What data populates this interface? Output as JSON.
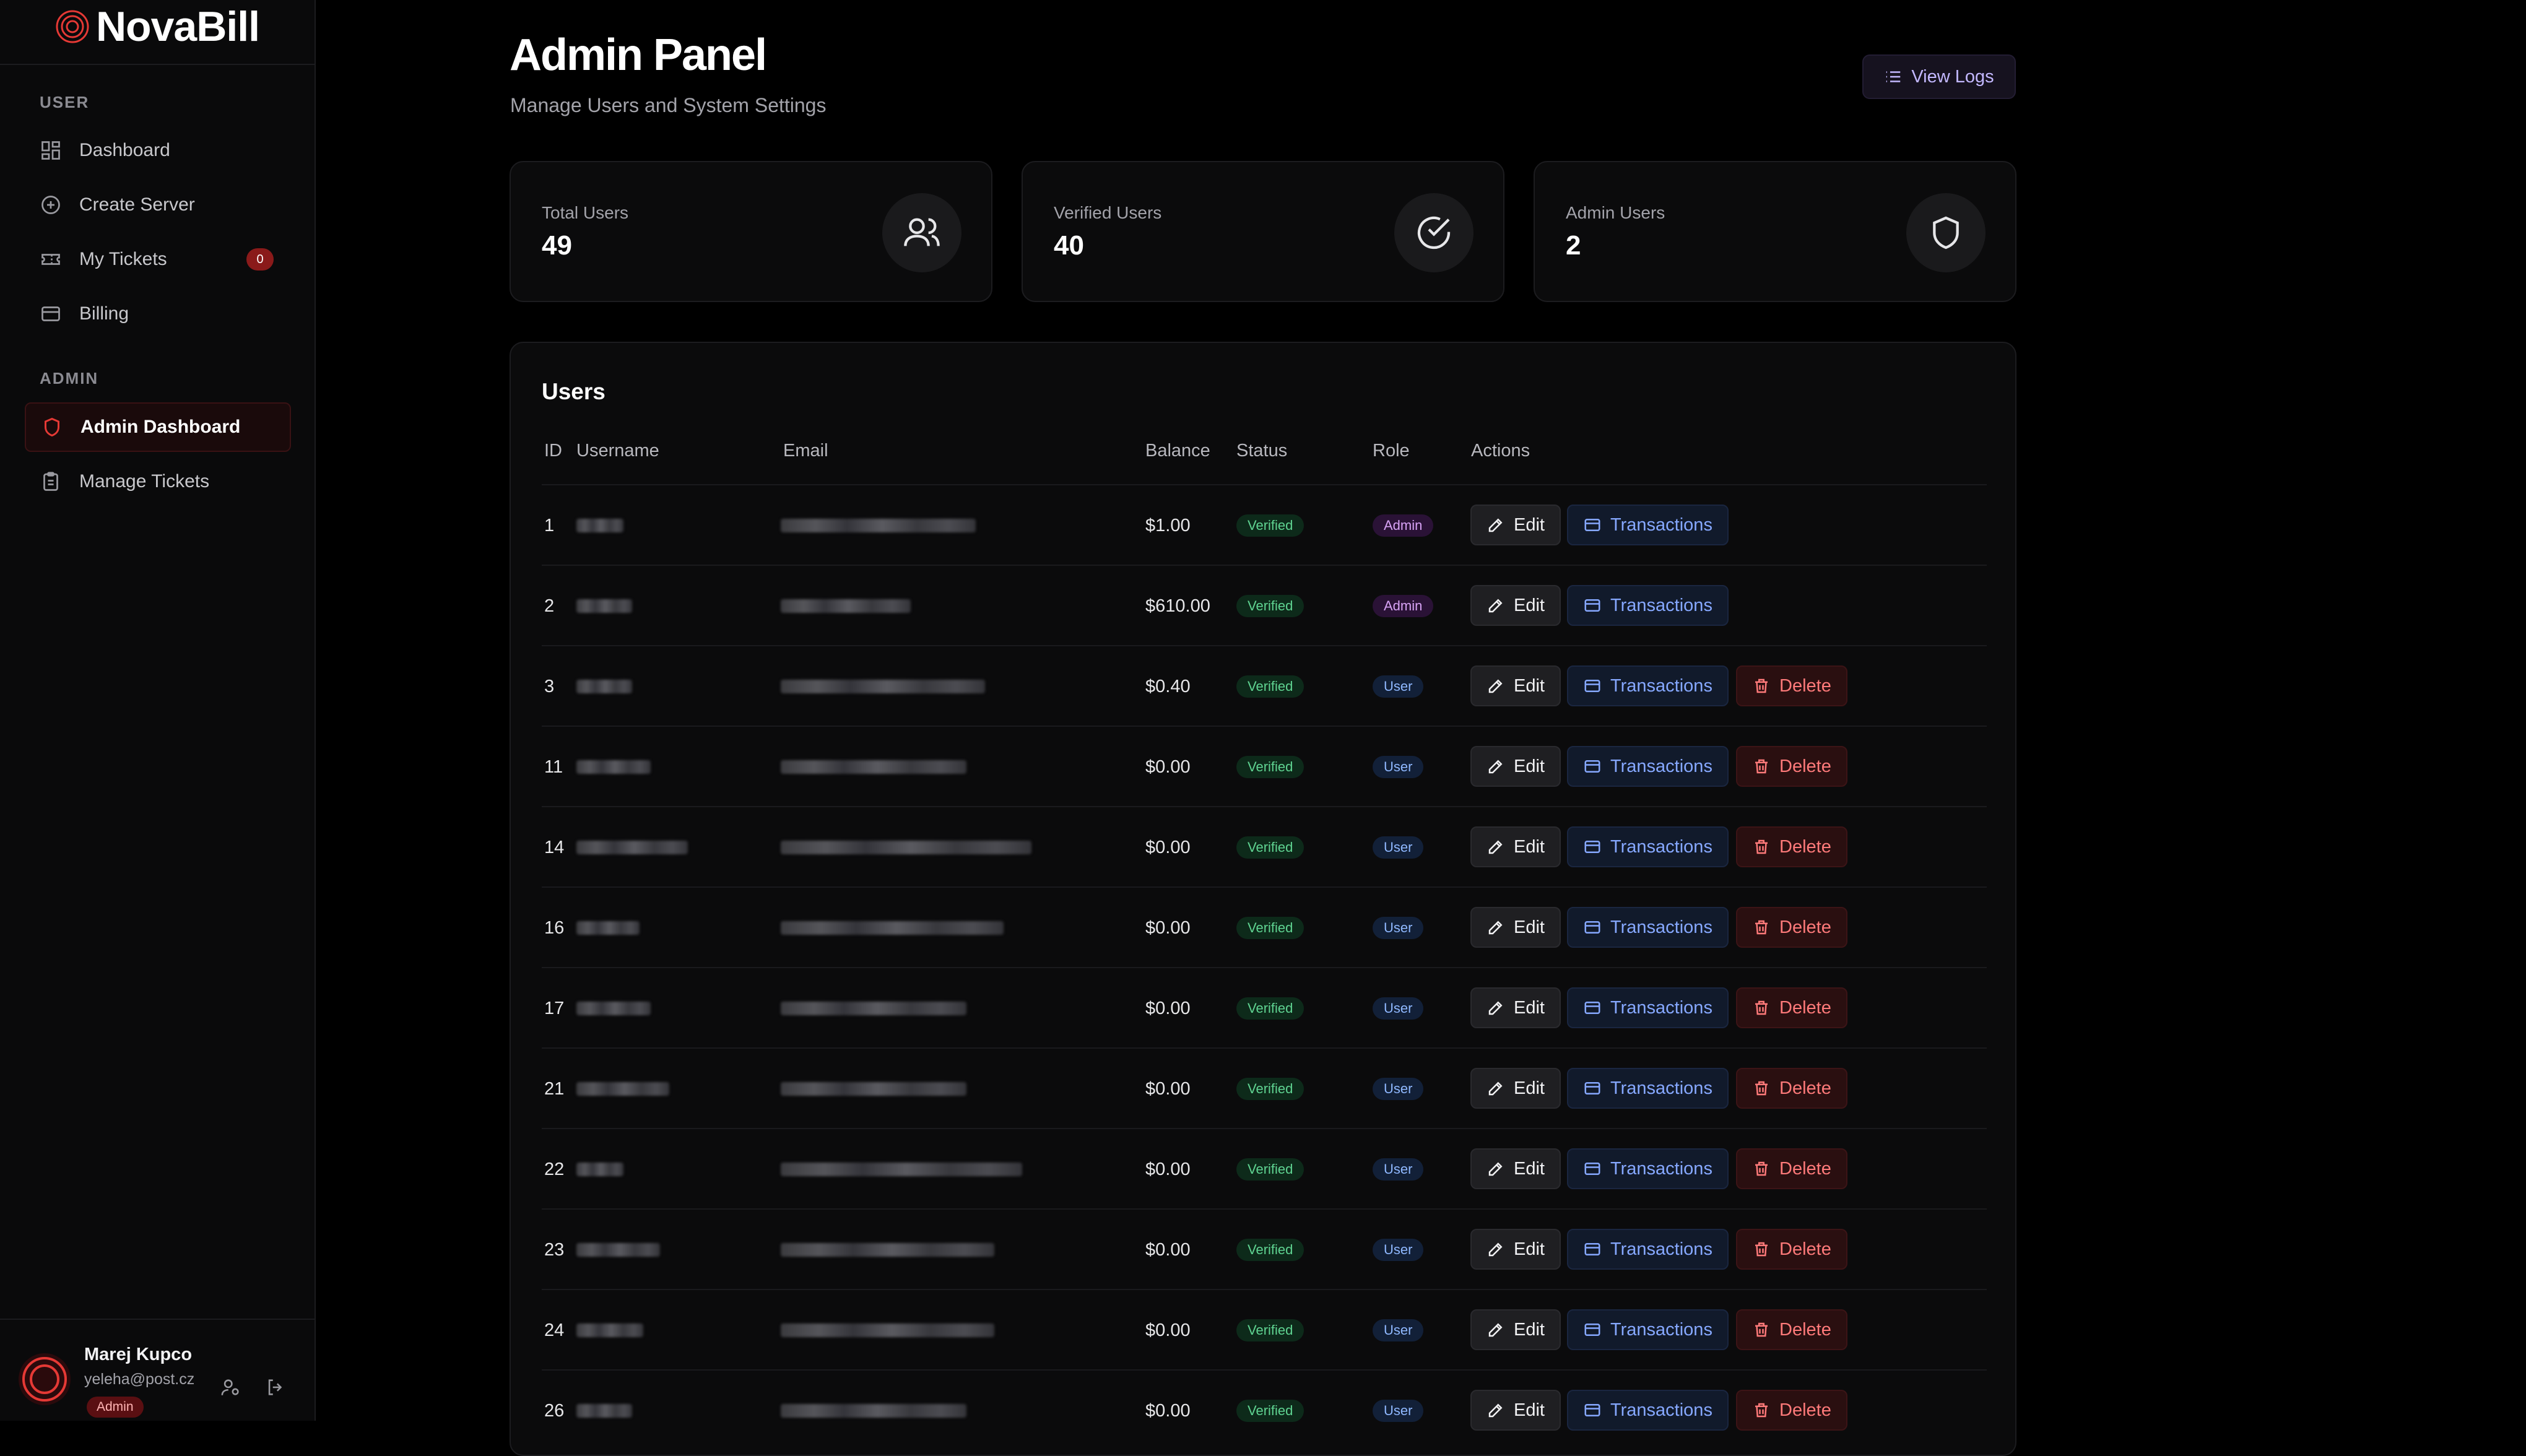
{
  "brand": {
    "name": "NovaBill"
  },
  "sidebar": {
    "user_section": "USER",
    "admin_section": "ADMIN",
    "user_items": [
      {
        "label": "Dashboard",
        "icon": "dashboard-icon"
      },
      {
        "label": "Create Server",
        "icon": "plus-circle-icon"
      },
      {
        "label": "My Tickets",
        "icon": "ticket-icon",
        "badge": "0"
      },
      {
        "label": "Billing",
        "icon": "credit-card-icon"
      }
    ],
    "admin_items": [
      {
        "label": "Admin Dashboard",
        "icon": "shield-icon",
        "active": true
      },
      {
        "label": "Manage Tickets",
        "icon": "clipboard-icon"
      }
    ]
  },
  "current_user": {
    "name": "Marej Kupco",
    "email": "yeleha@post.cz",
    "role": "Admin"
  },
  "header": {
    "title": "Admin Panel",
    "subtitle": "Manage Users and System Settings",
    "logs_button": "View Logs"
  },
  "stats": [
    {
      "label": "Total Users",
      "value": "49",
      "icon": "users-icon"
    },
    {
      "label": "Verified Users",
      "value": "40",
      "icon": "check-circle-icon"
    },
    {
      "label": "Admin Users",
      "value": "2",
      "icon": "shield-icon"
    }
  ],
  "users_table": {
    "title": "Users",
    "columns": [
      "ID",
      "Username",
      "Email",
      "Balance",
      "Status",
      "Role",
      "Actions"
    ],
    "actions": {
      "edit": "Edit",
      "transactions": "Transactions",
      "delete": "Delete"
    },
    "rows": [
      {
        "id": "1",
        "balance": "$1.00",
        "status": "Verified",
        "role": "Admin"
      },
      {
        "id": "2",
        "balance": "$610.00",
        "status": "Verified",
        "role": "Admin"
      },
      {
        "id": "3",
        "balance": "$0.40",
        "status": "Verified",
        "role": "User"
      },
      {
        "id": "11",
        "balance": "$0.00",
        "status": "Verified",
        "role": "User"
      },
      {
        "id": "14",
        "balance": "$0.00",
        "status": "Verified",
        "role": "User"
      },
      {
        "id": "16",
        "balance": "$0.00",
        "status": "Verified",
        "role": "User"
      },
      {
        "id": "17",
        "balance": "$0.00",
        "status": "Verified",
        "role": "User"
      },
      {
        "id": "21",
        "balance": "$0.00",
        "status": "Verified",
        "role": "User"
      },
      {
        "id": "22",
        "balance": "$0.00",
        "status": "Verified",
        "role": "User"
      },
      {
        "id": "23",
        "balance": "$0.00",
        "status": "Verified",
        "role": "User"
      },
      {
        "id": "24",
        "balance": "$0.00",
        "status": "Verified",
        "role": "User"
      },
      {
        "id": "26",
        "balance": "$0.00",
        "status": "Verified",
        "role": "User"
      }
    ]
  },
  "colors": {
    "accent": "#e53935",
    "verified": "#5fd391",
    "admin_badge": "#d7a2f5",
    "user_badge": "#8fb8ff"
  }
}
